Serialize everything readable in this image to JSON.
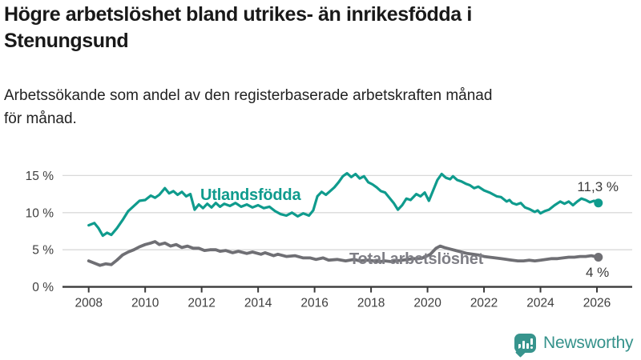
{
  "header": {
    "title": "Högre arbetslöshet bland utrikes- än inrikesfödda i\nStenungsund",
    "subtitle": "Arbetssökande som andel av den registerbaserade arbetskraften månad\nför månad."
  },
  "branding": {
    "logo_text": "Newsworthy",
    "logo_icon": "bar-chart-speech-bubble-icon",
    "logo_color": "#37948d"
  },
  "chart_data": {
    "type": "line",
    "title": "Högre arbetslöshet bland utrikes- än inrikesfödda i Stenungsund",
    "subtitle": "Arbetssökande som andel av den registerbaserade arbetskraften månad för månad.",
    "unit": "%",
    "grid": "horizontal",
    "legend_position": "inline-labels",
    "x_axis": {
      "range": [
        2007.05,
        2027.3
      ],
      "tick_years": [
        2008,
        2010,
        2012,
        2014,
        2016,
        2018,
        2020,
        2022,
        2024,
        2026
      ],
      "tick_labels": [
        "2008",
        "2010",
        "2012",
        "2014",
        "2016",
        "2018",
        "2020",
        "2022",
        "2024",
        "2026"
      ]
    },
    "y_axis": {
      "range": [
        0,
        16.5
      ],
      "ticks": [
        {
          "value": 0,
          "label": "0 %"
        },
        {
          "value": 5,
          "label": "5 %"
        },
        {
          "value": 10,
          "label": "10 %"
        },
        {
          "value": 15,
          "label": "15 %"
        }
      ]
    },
    "series": [
      {
        "name": "Utlandsfödda",
        "inline_label": "Utlandsfödda",
        "color": "#0f9b8d",
        "line_width": 3.2,
        "end_label": "11,3 %",
        "end_value": 11.3,
        "points": [
          [
            2008.0,
            8.3
          ],
          [
            2008.2,
            8.6
          ],
          [
            2008.35,
            7.9
          ],
          [
            2008.5,
            6.9
          ],
          [
            2008.65,
            7.3
          ],
          [
            2008.8,
            7.0
          ],
          [
            2009.0,
            7.9
          ],
          [
            2009.2,
            9.0
          ],
          [
            2009.4,
            10.2
          ],
          [
            2009.6,
            10.9
          ],
          [
            2009.8,
            11.6
          ],
          [
            2010.0,
            11.7
          ],
          [
            2010.2,
            12.3
          ],
          [
            2010.35,
            12.0
          ],
          [
            2010.5,
            12.4
          ],
          [
            2010.7,
            13.3
          ],
          [
            2010.85,
            12.6
          ],
          [
            2011.0,
            12.9
          ],
          [
            2011.15,
            12.4
          ],
          [
            2011.3,
            12.8
          ],
          [
            2011.45,
            12.2
          ],
          [
            2011.6,
            12.5
          ],
          [
            2011.75,
            10.4
          ],
          [
            2011.9,
            11.1
          ],
          [
            2012.05,
            10.6
          ],
          [
            2012.2,
            11.2
          ],
          [
            2012.35,
            10.7
          ],
          [
            2012.5,
            11.3
          ],
          [
            2012.65,
            10.8
          ],
          [
            2012.8,
            11.2
          ],
          [
            2013.0,
            10.9
          ],
          [
            2013.2,
            11.3
          ],
          [
            2013.4,
            10.8
          ],
          [
            2013.6,
            11.1
          ],
          [
            2013.8,
            10.7
          ],
          [
            2014.0,
            11.0
          ],
          [
            2014.2,
            10.6
          ],
          [
            2014.4,
            10.8
          ],
          [
            2014.6,
            10.2
          ],
          [
            2014.8,
            9.8
          ],
          [
            2015.0,
            9.6
          ],
          [
            2015.2,
            10.0
          ],
          [
            2015.4,
            9.5
          ],
          [
            2015.6,
            9.9
          ],
          [
            2015.8,
            9.6
          ],
          [
            2015.95,
            10.3
          ],
          [
            2016.1,
            12.2
          ],
          [
            2016.25,
            12.8
          ],
          [
            2016.4,
            12.4
          ],
          [
            2016.55,
            12.9
          ],
          [
            2016.7,
            13.4
          ],
          [
            2016.85,
            14.1
          ],
          [
            2017.0,
            14.9
          ],
          [
            2017.15,
            15.3
          ],
          [
            2017.3,
            14.8
          ],
          [
            2017.45,
            15.2
          ],
          [
            2017.6,
            14.6
          ],
          [
            2017.75,
            14.9
          ],
          [
            2017.9,
            14.1
          ],
          [
            2018.05,
            13.8
          ],
          [
            2018.2,
            13.4
          ],
          [
            2018.35,
            12.9
          ],
          [
            2018.5,
            12.7
          ],
          [
            2018.65,
            12.0
          ],
          [
            2018.8,
            11.3
          ],
          [
            2018.95,
            10.4
          ],
          [
            2019.1,
            11.0
          ],
          [
            2019.25,
            11.9
          ],
          [
            2019.4,
            11.7
          ],
          [
            2019.6,
            12.5
          ],
          [
            2019.75,
            12.2
          ],
          [
            2019.9,
            12.7
          ],
          [
            2020.05,
            11.6
          ],
          [
            2020.2,
            13.0
          ],
          [
            2020.35,
            14.4
          ],
          [
            2020.5,
            15.2
          ],
          [
            2020.65,
            14.7
          ],
          [
            2020.8,
            14.5
          ],
          [
            2020.9,
            14.9
          ],
          [
            2021.05,
            14.4
          ],
          [
            2021.2,
            14.2
          ],
          [
            2021.35,
            13.9
          ],
          [
            2021.5,
            13.7
          ],
          [
            2021.65,
            13.3
          ],
          [
            2021.8,
            13.5
          ],
          [
            2022.0,
            13.0
          ],
          [
            2022.2,
            12.7
          ],
          [
            2022.45,
            12.2
          ],
          [
            2022.6,
            12.1
          ],
          [
            2022.8,
            11.5
          ],
          [
            2022.9,
            11.7
          ],
          [
            2023.0,
            11.3
          ],
          [
            2023.15,
            11.1
          ],
          [
            2023.3,
            11.3
          ],
          [
            2023.45,
            10.7
          ],
          [
            2023.6,
            10.5
          ],
          [
            2023.8,
            10.1
          ],
          [
            2023.9,
            10.3
          ],
          [
            2024.0,
            9.9
          ],
          [
            2024.15,
            10.2
          ],
          [
            2024.3,
            10.4
          ],
          [
            2024.5,
            11.0
          ],
          [
            2024.7,
            11.5
          ],
          [
            2024.85,
            11.2
          ],
          [
            2025.0,
            11.5
          ],
          [
            2025.15,
            11.0
          ],
          [
            2025.3,
            11.5
          ],
          [
            2025.45,
            11.9
          ],
          [
            2025.6,
            11.7
          ],
          [
            2025.75,
            11.4
          ],
          [
            2025.9,
            11.6
          ],
          [
            2026.05,
            11.3
          ]
        ]
      },
      {
        "name": "Total arbetslöshet",
        "inline_label": "Total arbetslöshet",
        "color": "#6f6f74",
        "line_width": 3.8,
        "end_label": "4 %",
        "end_value": 4.0,
        "points": [
          [
            2008.0,
            3.5
          ],
          [
            2008.2,
            3.2
          ],
          [
            2008.4,
            2.9
          ],
          [
            2008.6,
            3.1
          ],
          [
            2008.8,
            3.0
          ],
          [
            2009.0,
            3.6
          ],
          [
            2009.2,
            4.3
          ],
          [
            2009.4,
            4.7
          ],
          [
            2009.6,
            5.0
          ],
          [
            2009.8,
            5.4
          ],
          [
            2010.0,
            5.7
          ],
          [
            2010.2,
            5.9
          ],
          [
            2010.35,
            6.1
          ],
          [
            2010.5,
            5.7
          ],
          [
            2010.7,
            5.9
          ],
          [
            2010.9,
            5.5
          ],
          [
            2011.1,
            5.7
          ],
          [
            2011.3,
            5.3
          ],
          [
            2011.5,
            5.5
          ],
          [
            2011.7,
            5.2
          ],
          [
            2011.9,
            5.2
          ],
          [
            2012.1,
            4.9
          ],
          [
            2012.3,
            5.0
          ],
          [
            2012.5,
            5.0
          ],
          [
            2012.65,
            4.8
          ],
          [
            2012.85,
            4.9
          ],
          [
            2013.1,
            4.6
          ],
          [
            2013.3,
            4.8
          ],
          [
            2013.6,
            4.5
          ],
          [
            2013.8,
            4.7
          ],
          [
            2014.1,
            4.4
          ],
          [
            2014.25,
            4.6
          ],
          [
            2014.55,
            4.2
          ],
          [
            2014.7,
            4.4
          ],
          [
            2015.0,
            4.1
          ],
          [
            2015.3,
            4.2
          ],
          [
            2015.6,
            3.9
          ],
          [
            2015.85,
            3.9
          ],
          [
            2016.05,
            3.7
          ],
          [
            2016.3,
            3.9
          ],
          [
            2016.5,
            3.6
          ],
          [
            2016.8,
            3.7
          ],
          [
            2017.1,
            3.5
          ],
          [
            2017.4,
            3.7
          ],
          [
            2017.6,
            3.5
          ],
          [
            2017.9,
            3.6
          ],
          [
            2018.1,
            3.5
          ],
          [
            2018.3,
            3.4
          ],
          [
            2018.5,
            3.5
          ],
          [
            2018.7,
            3.4
          ],
          [
            2018.9,
            3.5
          ],
          [
            2019.1,
            3.6
          ],
          [
            2019.3,
            3.7
          ],
          [
            2019.5,
            3.8
          ],
          [
            2019.7,
            3.8
          ],
          [
            2019.9,
            4.0
          ],
          [
            2020.1,
            4.4
          ],
          [
            2020.3,
            5.2
          ],
          [
            2020.45,
            5.5
          ],
          [
            2020.6,
            5.3
          ],
          [
            2020.8,
            5.1
          ],
          [
            2021.0,
            4.9
          ],
          [
            2021.2,
            4.7
          ],
          [
            2021.4,
            4.5
          ],
          [
            2021.6,
            4.4
          ],
          [
            2021.8,
            4.3
          ],
          [
            2022.0,
            4.1
          ],
          [
            2022.2,
            4.0
          ],
          [
            2022.4,
            3.9
          ],
          [
            2022.6,
            3.8
          ],
          [
            2022.8,
            3.7
          ],
          [
            2023.0,
            3.6
          ],
          [
            2023.2,
            3.5
          ],
          [
            2023.4,
            3.5
          ],
          [
            2023.6,
            3.6
          ],
          [
            2023.8,
            3.5
          ],
          [
            2024.0,
            3.6
          ],
          [
            2024.2,
            3.7
          ],
          [
            2024.4,
            3.8
          ],
          [
            2024.6,
            3.8
          ],
          [
            2024.8,
            3.9
          ],
          [
            2025.0,
            4.0
          ],
          [
            2025.2,
            4.0
          ],
          [
            2025.4,
            4.1
          ],
          [
            2025.6,
            4.1
          ],
          [
            2025.8,
            4.2
          ],
          [
            2026.05,
            4.0
          ]
        ]
      }
    ]
  }
}
